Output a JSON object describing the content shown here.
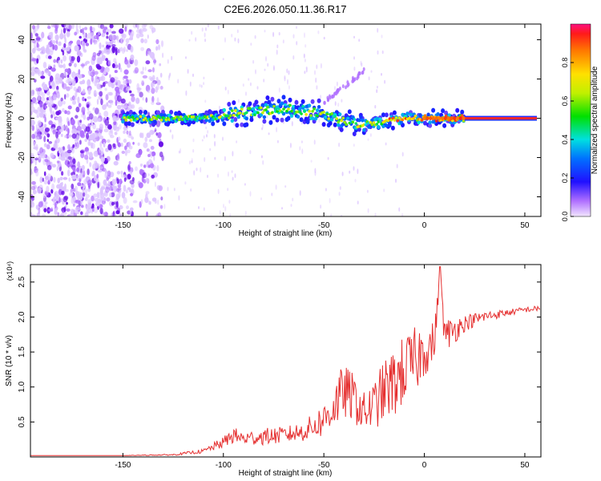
{
  "figure": {
    "title": "C2E6.2026.050.11.36.R17",
    "colors": {
      "background": "#ffffff",
      "scatter_purple": "#6a00e0",
      "snr_line": "#e53030",
      "axis": "#000000"
    }
  },
  "chart_data": [
    {
      "type": "heatmap",
      "title": "C2E6.2026.050.11.36.R17",
      "xlabel": "Height of straight line (km)",
      "ylabel": "Frequency (Hz)",
      "xlim": [
        -196,
        58
      ],
      "ylim": [
        -50,
        48
      ],
      "xticks": [
        -150,
        -100,
        -50,
        0,
        50
      ],
      "yticks": [
        -40,
        -20,
        0,
        20,
        40
      ],
      "colorbar": {
        "label": "Normalized spectral amplitude",
        "range": [
          0,
          1
        ],
        "ticks": [
          "0.0",
          "0.2",
          "0.4",
          "0.6",
          "0.8"
        ],
        "tick_values": [
          0.0,
          0.2,
          0.4,
          0.6,
          0.8
        ]
      },
      "features": {
        "noise_region_x": [
          -196,
          -140
        ],
        "main_band": {
          "x": [
            -150,
            -140,
            -130,
            -120,
            -110,
            -100,
            -90,
            -80,
            -70,
            -60,
            -50,
            -40,
            -30,
            -20,
            -10,
            0,
            10,
            20
          ],
          "freq": [
            0,
            0,
            0,
            0,
            0,
            1,
            3,
            4,
            5,
            4,
            2,
            -1,
            -3,
            -2,
            0,
            0,
            0,
            0
          ]
        },
        "clean_line": {
          "x": [
            20,
            56
          ],
          "freq": 0
        },
        "oblique_trace": {
          "x": [
            -50,
            -30
          ],
          "freq": [
            8,
            24
          ]
        }
      }
    },
    {
      "type": "line",
      "xlabel": "Height of straight line (km)",
      "ylabel": "SNR (10 * v/v)",
      "scale_label": "(x10⁴)",
      "xlim": [
        -196,
        58
      ],
      "ylim": [
        0,
        2.75
      ],
      "xticks": [
        -150,
        -100,
        -50,
        0,
        50
      ],
      "yticks": [
        0.5,
        1.0,
        1.5,
        2.0,
        2.5
      ],
      "ytick_labels": [
        "0.5",
        "1.0",
        "1.5",
        "2.0",
        "2.5"
      ],
      "series": [
        {
          "name": "SNR",
          "x": [
            -196,
            -150,
            -125,
            -110,
            -100,
            -95,
            -90,
            -80,
            -70,
            -60,
            -50,
            -45,
            -40,
            -35,
            -30,
            -25,
            -20,
            -15,
            -10,
            -5,
            0,
            5,
            8,
            10,
            15,
            20,
            30,
            40,
            50,
            58
          ],
          "values": [
            0.02,
            0.02,
            0.03,
            0.08,
            0.2,
            0.3,
            0.25,
            0.28,
            0.3,
            0.35,
            0.5,
            0.7,
            0.9,
            0.8,
            0.6,
            0.7,
            0.9,
            1.0,
            1.2,
            1.3,
            1.5,
            1.6,
            2.72,
            1.7,
            1.8,
            1.9,
            2.0,
            2.05,
            2.1,
            2.12
          ],
          "noise": [
            0,
            0,
            0.01,
            0.03,
            0.08,
            0.12,
            0.1,
            0.12,
            0.12,
            0.14,
            0.25,
            0.35,
            0.4,
            0.35,
            0.3,
            0.35,
            0.45,
            0.5,
            0.5,
            0.5,
            0.4,
            0.3,
            0,
            0.25,
            0.2,
            0.12,
            0.08,
            0.05,
            0.04,
            0.04
          ]
        }
      ]
    }
  ]
}
